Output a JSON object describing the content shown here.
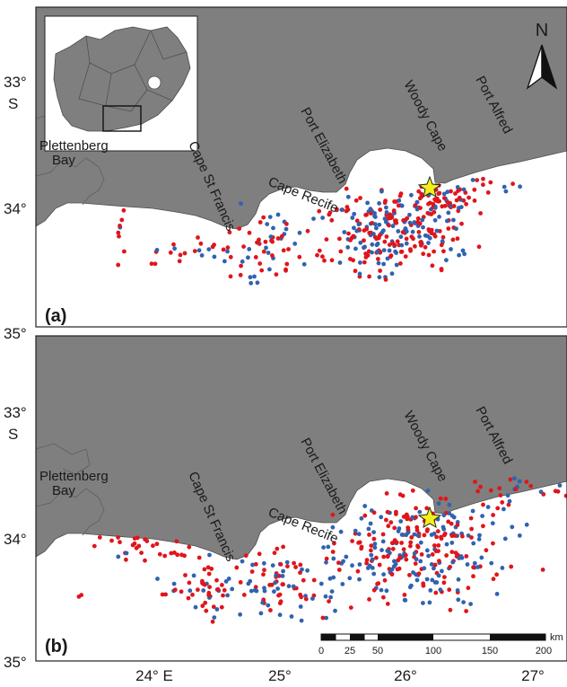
{
  "latitude_ticks": {
    "t33": "33°",
    "s": "S",
    "t34": "34°",
    "t35": "35°"
  },
  "longitude_ticks": [
    "24° E",
    "25°",
    "26°",
    "27°"
  ],
  "places": {
    "plettenberg": "Plettenberg",
    "bay": "Bay",
    "cape_st_francis": "Cape St Francis",
    "port_elizabeth": "Port Elizabeth",
    "cape_recife": "Cape Recife",
    "woody_cape": "Woody Cape",
    "port_alfred": "Port Alfred"
  },
  "north_arrow": {
    "letter": "N",
    "icon": "north-arrow-icon"
  },
  "panels": [
    {
      "label": "(a)"
    },
    {
      "label": "(b)"
    }
  ],
  "scale_bar": {
    "unit": "km",
    "labels": [
      "0",
      "25",
      "50",
      "100",
      "150",
      "200"
    ]
  },
  "colors": {
    "land": "#7f7f7f",
    "sea": "#ffffff",
    "red_points": "#e0151b",
    "blue_points": "#2f63b0",
    "star": "#f2ef1a"
  }
}
